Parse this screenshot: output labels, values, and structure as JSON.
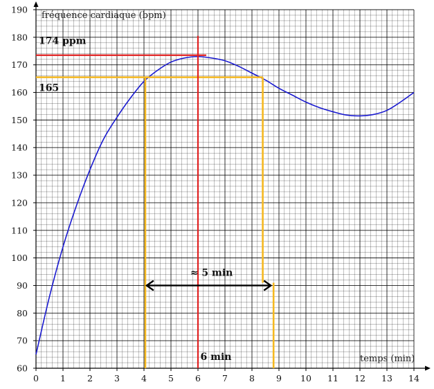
{
  "chart_data": {
    "type": "line",
    "xlabel": "temps (min)",
    "ylabel": "fréquence cardiaque (bpm)",
    "xlim": [
      0,
      14
    ],
    "ylim": [
      60,
      190
    ],
    "x_ticks": [
      "0",
      "1",
      "2",
      "3",
      "4",
      "5",
      "6",
      "7",
      "8",
      "9",
      "10",
      "11",
      "12",
      "13",
      "14"
    ],
    "y_ticks": [
      "60",
      "70",
      "80",
      "90",
      "100",
      "110",
      "120",
      "130",
      "140",
      "150",
      "160",
      "170",
      "180",
      "190"
    ],
    "grid": "fine (minor every 0.2 min / 2 bpm, major every 1 min / 10 bpm)",
    "series": [
      {
        "color": "#1a1ad0",
        "x": [
          0,
          0.5,
          1,
          1.5,
          2,
          2.5,
          3,
          3.5,
          4,
          4.5,
          5,
          5.5,
          6,
          6.5,
          7,
          7.5,
          8,
          8.5,
          9,
          9.5,
          10,
          10.5,
          11,
          11.5,
          12,
          12.5,
          13,
          13.5,
          14
        ],
        "y": [
          65,
          86,
          104,
          119,
          132,
          143,
          151,
          158,
          164,
          168,
          171,
          172.5,
          173,
          172.5,
          171.5,
          169.5,
          167,
          164.5,
          161.5,
          159,
          156.5,
          154.5,
          153,
          151.8,
          151.5,
          152,
          153.5,
          156.5,
          160
        ]
      }
    ],
    "annotations": {
      "peak_label": "174 ppm",
      "level_label": "165",
      "duration_label": "≈ 5 min",
      "time_label": "6 min",
      "peak_y": 173.5,
      "level_y": 165.5,
      "peak_x": 6,
      "level_x_left": 4.05,
      "level_x_right": 8.4,
      "band_x_left": 4.05,
      "band_x_right": 8.8,
      "arrow_y": 90,
      "arrow_x_left": 4.1,
      "arrow_x_right": 8.7
    },
    "colors": {
      "curve": "#1a1ad0",
      "peak_lines": "#e02020",
      "level_lines": "#f5b820",
      "arrow": "#000000",
      "grid": "#000000"
    }
  }
}
